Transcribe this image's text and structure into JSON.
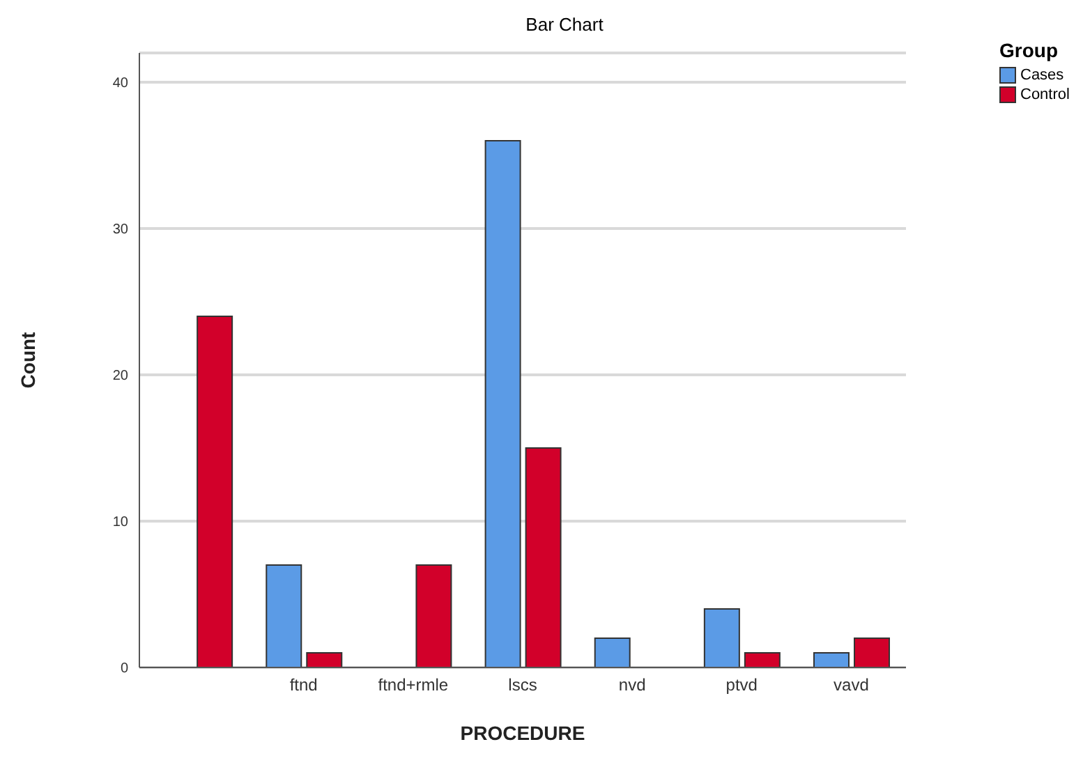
{
  "chart_data": {
    "type": "bar",
    "title": "Bar Chart",
    "xlabel": "PROCEDURE",
    "ylabel": "Count",
    "legend_title": "Group",
    "categories": [
      null,
      "ftnd",
      "ftnd+rmle",
      "lscs",
      "nvd",
      "ptvd",
      "vavd"
    ],
    "series": [
      {
        "name": "Cases",
        "color": "#5b9be6",
        "values": [
          0,
          7,
          0,
          36,
          2,
          4,
          1
        ]
      },
      {
        "name": "Control",
        "color": "#d2002a",
        "values": [
          24,
          1,
          7,
          15,
          0,
          1,
          2
        ]
      }
    ],
    "ylim": [
      0,
      42
    ],
    "yticks": [
      0,
      10,
      20,
      30,
      40
    ],
    "grid": "y",
    "legend": "top right"
  }
}
